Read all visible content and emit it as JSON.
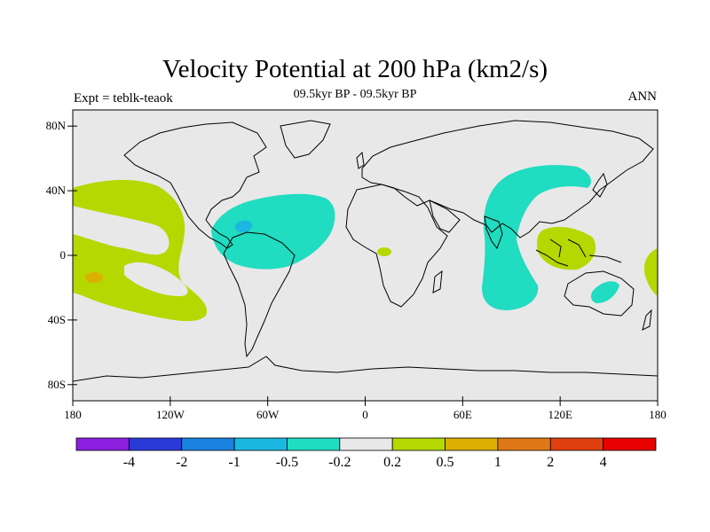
{
  "title": "Velocity Potential at 200 hPa (km2/s)",
  "subtitle": "09.5kyr BP - 09.5kyr BP",
  "left_label": "Expt = teblk-teaok",
  "right_label": "ANN",
  "map": {
    "projection": "cylindrical-equidistant",
    "lon_range": [
      -180,
      180
    ],
    "lat_range": [
      -90,
      90
    ],
    "lat_ticks": [
      {
        "value": 80,
        "label": "80N"
      },
      {
        "value": 40,
        "label": "40N"
      },
      {
        "value": 0,
        "label": "0"
      },
      {
        "value": -40,
        "label": "40S"
      },
      {
        "value": -80,
        "label": "80S"
      }
    ],
    "lon_ticks": [
      {
        "value": -180,
        "label": "180"
      },
      {
        "value": -120,
        "label": "120W"
      },
      {
        "value": -60,
        "label": "60W"
      },
      {
        "value": 0,
        "label": "0"
      },
      {
        "value": 60,
        "label": "60E"
      },
      {
        "value": 120,
        "label": "120E"
      },
      {
        "value": 180,
        "label": "180"
      }
    ],
    "background_color": "#e8e8e8"
  },
  "colorbar": {
    "colors": [
      "#8a1fe0",
      "#2a3ad8",
      "#1a82e0",
      "#1ab8e0",
      "#20dcc0",
      "#e8e8e8",
      "#b4d800",
      "#dcb000",
      "#e07818",
      "#e04010",
      "#e80000"
    ],
    "labels": [
      "-4",
      "-2",
      "-1",
      "-0.5",
      "-0.2",
      "0.2",
      "0.5",
      "1",
      "2",
      "4"
    ]
  }
}
